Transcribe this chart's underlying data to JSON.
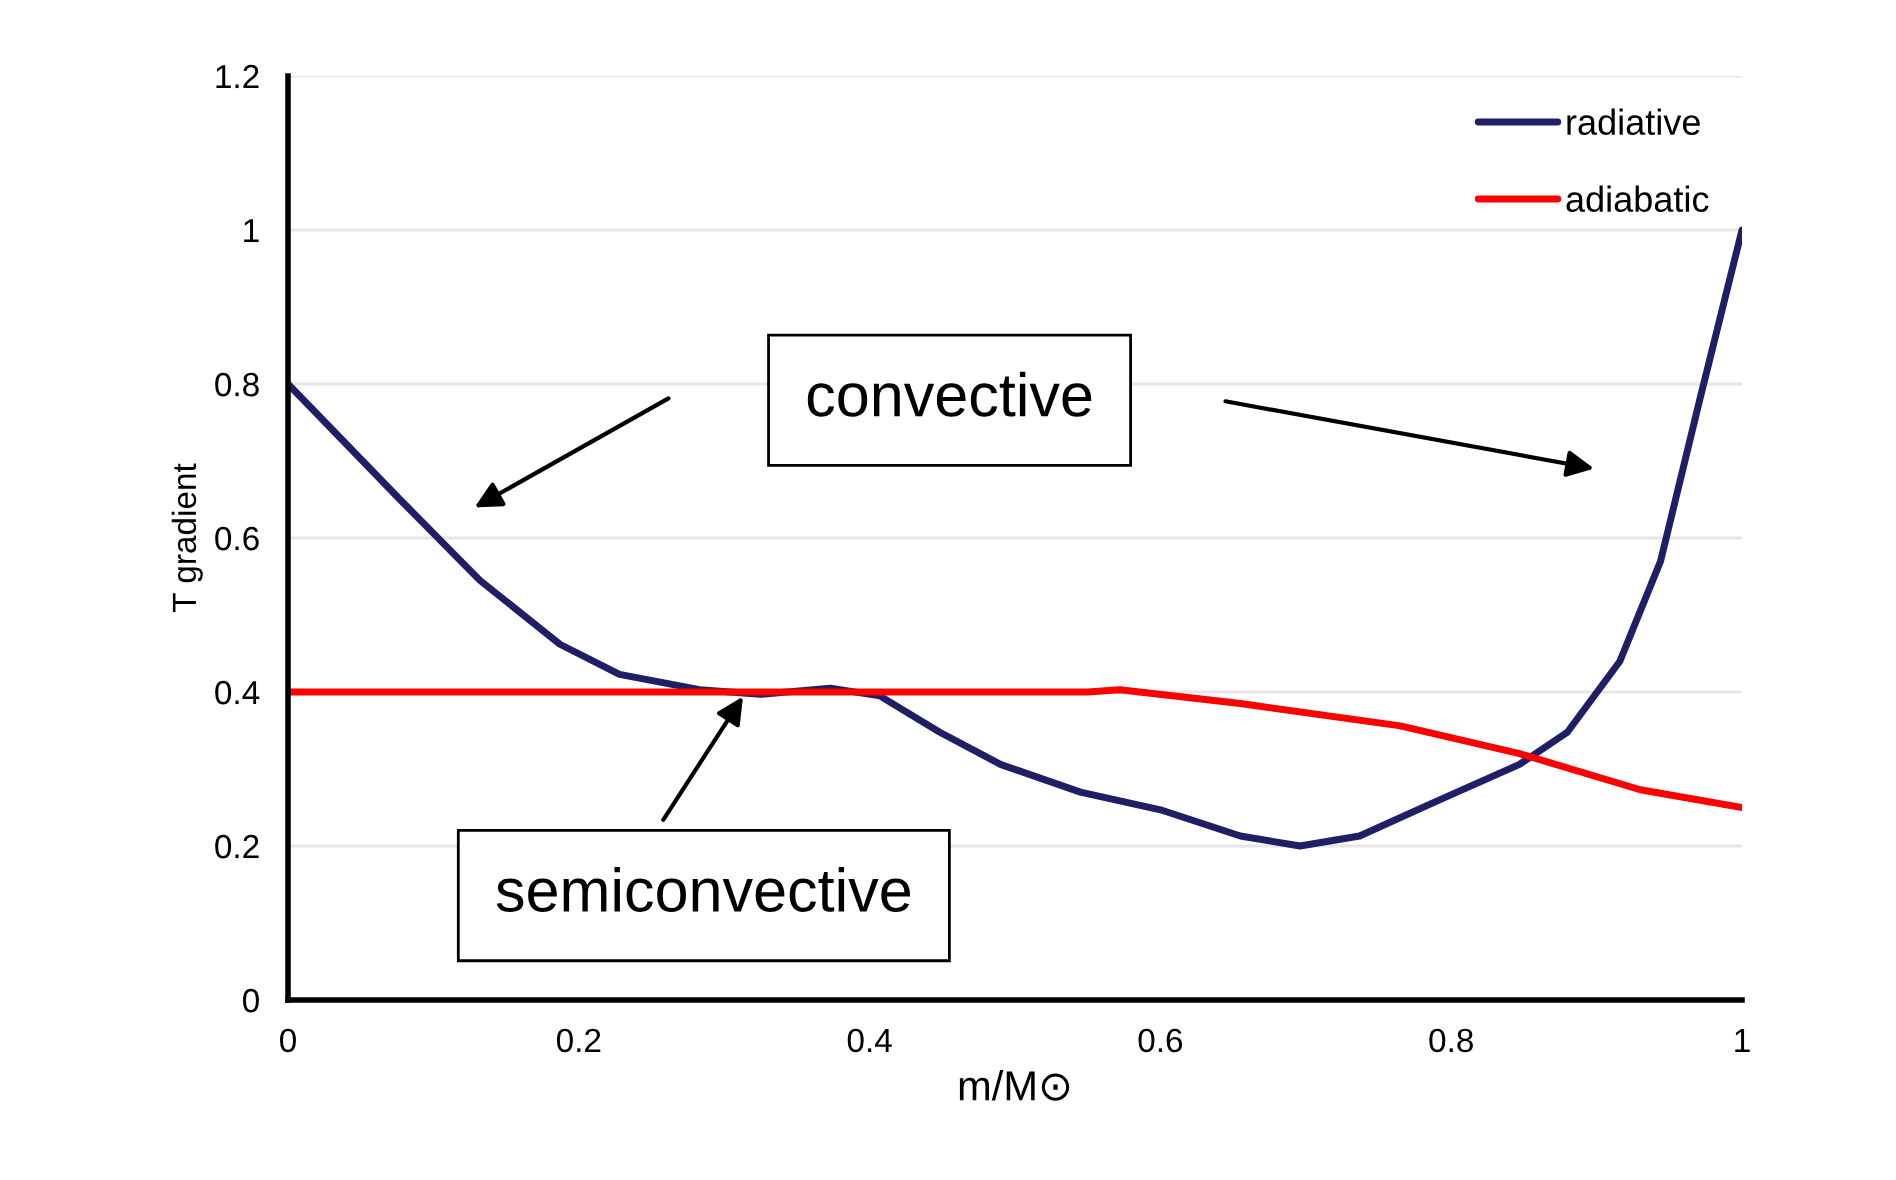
{
  "chart_data": {
    "type": "line",
    "xlabel": "m/M⊙",
    "ylabel": "T gradient",
    "series": [
      {
        "name": "radiative",
        "color": "#1f1f66",
        "x": [
          0,
          0.077,
          0.132,
          0.187,
          0.228,
          0.283,
          0.325,
          0.373,
          0.407,
          0.448,
          0.49,
          0.545,
          0.6,
          0.655,
          0.696,
          0.737,
          0.792,
          0.847,
          0.88,
          0.916,
          0.944,
          0.971,
          1
        ],
        "values": [
          0.8,
          0.65,
          0.545,
          0.462,
          0.423,
          0.403,
          0.397,
          0.405,
          0.395,
          0.348,
          0.306,
          0.27,
          0.247,
          0.213,
          0.2,
          0.213,
          0.26,
          0.306,
          0.348,
          0.44,
          0.57,
          0.78,
          1.0
        ]
      },
      {
        "name": "adiabatic",
        "color": "#ff0000",
        "x": [
          0,
          0.2,
          0.4,
          0.55,
          0.572,
          0.655,
          0.765,
          0.847,
          0.93,
          1
        ],
        "values": [
          0.4,
          0.4,
          0.4,
          0.4,
          0.403,
          0.385,
          0.356,
          0.32,
          0.273,
          0.25
        ]
      }
    ],
    "xlim": [
      0,
      1
    ],
    "xticks": [
      0,
      0.2,
      0.4,
      0.6,
      0.8,
      1
    ],
    "ylim": [
      0,
      1.2
    ],
    "yticks": [
      0,
      0.2,
      0.4,
      0.6,
      0.8,
      1,
      1.2
    ],
    "grid": "y",
    "legend": "top right",
    "marker": "none",
    "line_style": "solid",
    "annotations": [
      "convective",
      {
        "text": "semiconvective",
        "x": 0.315,
        "y": 0.4
      }
    ]
  }
}
